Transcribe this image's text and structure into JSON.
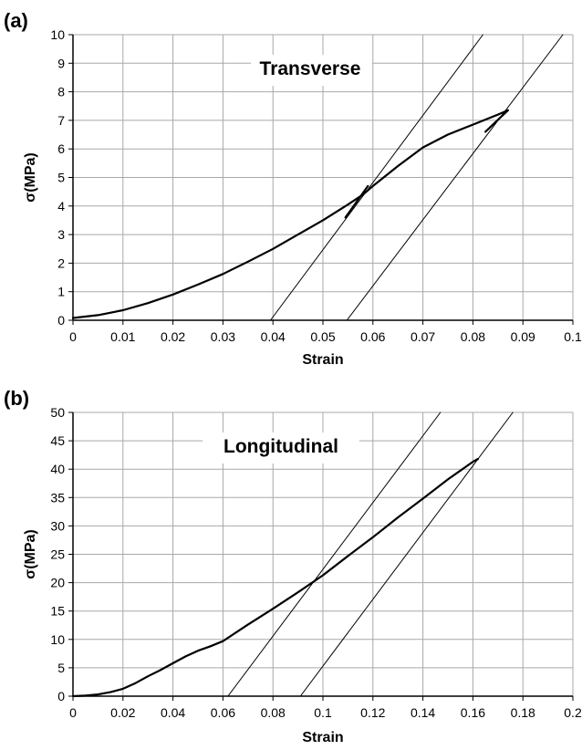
{
  "chart_data": [
    {
      "type": "line",
      "panel_label": "(a)",
      "title": "Transverse",
      "xlabel": "Strain",
      "ylabel": "σ(MPa)",
      "xlim": [
        0,
        0.1
      ],
      "ylim": [
        0,
        10
      ],
      "x_ticks": [
        "0",
        "0.01",
        "0.02",
        "0.03",
        "0.04",
        "0.05",
        "0.06",
        "0.07",
        "0.08",
        "0.09",
        "0.1"
      ],
      "y_ticks": [
        "0",
        "1",
        "2",
        "3",
        "4",
        "5",
        "6",
        "7",
        "8",
        "9",
        "10"
      ],
      "grid": true,
      "series": [
        {
          "role": "stress-strain curve",
          "style": "thick",
          "x": [
            0,
            0.005,
            0.01,
            0.015,
            0.02,
            0.025,
            0.03,
            0.035,
            0.04,
            0.045,
            0.05,
            0.055,
            0.058,
            0.06,
            0.065,
            0.07,
            0.075,
            0.08,
            0.085,
            0.087
          ],
          "y": [
            0.08,
            0.18,
            0.35,
            0.6,
            0.9,
            1.25,
            1.62,
            2.05,
            2.5,
            3.0,
            3.5,
            4.05,
            4.4,
            4.7,
            5.4,
            6.05,
            6.5,
            6.85,
            7.2,
            7.35
          ]
        },
        {
          "role": "unload segment 1",
          "style": "thick",
          "x": [
            0.059,
            0.0545
          ],
          "y": [
            4.7,
            3.6
          ]
        },
        {
          "role": "unload segment 2",
          "style": "thick",
          "x": [
            0.087,
            0.0825
          ],
          "y": [
            7.35,
            6.6
          ]
        },
        {
          "role": "reference line 1",
          "style": "thin",
          "x": [
            0.0395,
            0.082
          ],
          "y": [
            0,
            10
          ]
        },
        {
          "role": "reference line 2",
          "style": "thin",
          "x": [
            0.0548,
            0.098
          ],
          "y": [
            0,
            10
          ]
        }
      ]
    },
    {
      "type": "line",
      "panel_label": "(b)",
      "title": "Longitudinal",
      "xlabel": "Strain",
      "ylabel": "σ(MPa)",
      "xlim": [
        0,
        0.2
      ],
      "ylim": [
        0,
        50
      ],
      "x_ticks": [
        "0",
        "0.02",
        "0.04",
        "0.06",
        "0.08",
        "0.1",
        "0.12",
        "0.14",
        "0.16",
        "0.18",
        "0.2"
      ],
      "y_ticks": [
        "0",
        "5",
        "10",
        "15",
        "20",
        "25",
        "30",
        "35",
        "40",
        "45",
        "50"
      ],
      "grid": true,
      "series": [
        {
          "role": "stress-strain curve",
          "style": "thick",
          "x": [
            0,
            0.005,
            0.01,
            0.015,
            0.02,
            0.025,
            0.03,
            0.035,
            0.04,
            0.045,
            0.05,
            0.055,
            0.06,
            0.07,
            0.08,
            0.09,
            0.1,
            0.11,
            0.12,
            0.13,
            0.14,
            0.15,
            0.16,
            0.162
          ],
          "y": [
            0,
            0.1,
            0.3,
            0.7,
            1.3,
            2.3,
            3.5,
            4.6,
            5.8,
            7.0,
            8.0,
            8.8,
            9.7,
            12.6,
            15.4,
            18.3,
            21.3,
            24.7,
            28.0,
            31.5,
            34.8,
            38.2,
            41.3,
            41.8
          ]
        },
        {
          "role": "reference line 1",
          "style": "thin",
          "x": [
            0.062,
            0.147
          ],
          "y": [
            0,
            50
          ]
        },
        {
          "role": "reference line 2",
          "style": "thin",
          "x": [
            0.091,
            0.176
          ],
          "y": [
            0,
            50
          ]
        }
      ]
    }
  ]
}
